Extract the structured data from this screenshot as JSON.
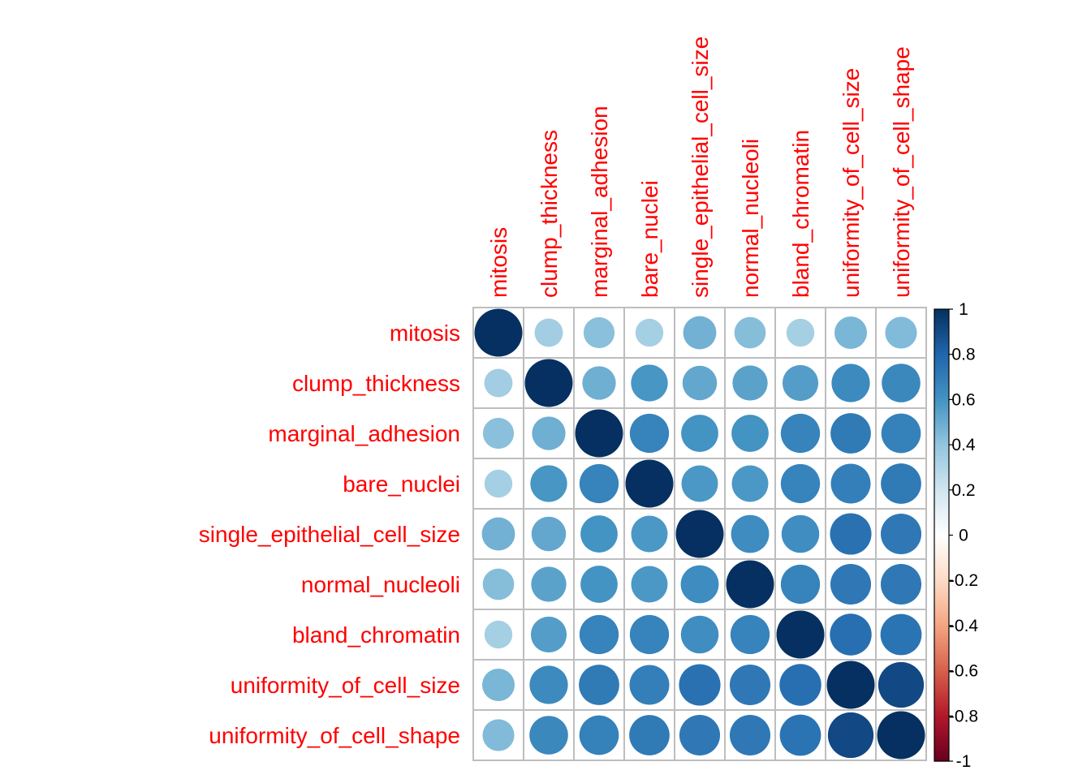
{
  "chart_data": {
    "type": "heatmap",
    "title": "",
    "variables": [
      "mitosis",
      "clump_thickness",
      "marginal_adhesion",
      "bare_nuclei",
      "single_epithelial_cell_size",
      "normal_nucleoli",
      "bland_chromatin",
      "uniformity_of_cell_size",
      "uniformity_of_cell_shape"
    ],
    "matrix": [
      [
        1.0,
        0.35,
        0.42,
        0.34,
        0.48,
        0.43,
        0.34,
        0.46,
        0.44
      ],
      [
        0.35,
        1.0,
        0.49,
        0.59,
        0.52,
        0.54,
        0.56,
        0.64,
        0.65
      ],
      [
        0.42,
        0.49,
        1.0,
        0.67,
        0.6,
        0.6,
        0.67,
        0.71,
        0.68
      ],
      [
        0.34,
        0.59,
        0.67,
        1.0,
        0.58,
        0.58,
        0.67,
        0.69,
        0.71
      ],
      [
        0.48,
        0.52,
        0.6,
        0.58,
        1.0,
        0.63,
        0.62,
        0.75,
        0.72
      ],
      [
        0.43,
        0.54,
        0.6,
        0.58,
        0.63,
        1.0,
        0.67,
        0.72,
        0.72
      ],
      [
        0.34,
        0.56,
        0.67,
        0.67,
        0.62,
        0.67,
        1.0,
        0.76,
        0.74
      ],
      [
        0.46,
        0.64,
        0.71,
        0.69,
        0.75,
        0.72,
        0.76,
        1.0,
        0.91
      ],
      [
        0.44,
        0.65,
        0.68,
        0.71,
        0.72,
        0.72,
        0.74,
        0.91,
        1.0
      ]
    ],
    "colorbar": {
      "range": [
        -1,
        1
      ],
      "ticks": [
        "1",
        "0.8",
        "0.6",
        "0.4",
        "0.2",
        "0",
        "-0.2",
        "-0.4",
        "-0.6",
        "-0.8",
        "-1"
      ],
      "tick_values": [
        1,
        0.8,
        0.6,
        0.4,
        0.2,
        0,
        -0.2,
        -0.4,
        -0.6,
        -0.8,
        -1
      ]
    },
    "label_color": "#FF0000",
    "grid_color": "#BEBEBE",
    "palette": [
      "#67001F",
      "#B2182B",
      "#D6604D",
      "#F4A582",
      "#FDDBC7",
      "#FFFFFF",
      "#D1E5F0",
      "#92C5DE",
      "#4393C3",
      "#2166AC",
      "#053061"
    ]
  }
}
